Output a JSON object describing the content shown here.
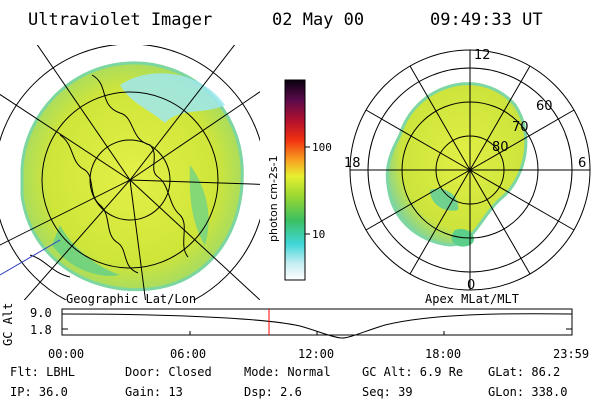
{
  "header": {
    "instrument": "Ultraviolet Imager",
    "date": "02 May 00",
    "time": "09:49:33 UT"
  },
  "colors": {
    "foreground": "#000000",
    "background": "#ffffff",
    "cursor": "#ff0000",
    "aurora_main": "#d8ef3a",
    "aurora_low": "#52c98a",
    "aurora_edge": "#8ee6ea"
  },
  "panels": {
    "geographic_label": "Geographic Lat/Lon",
    "apex_label": "Apex MLat/MLT"
  },
  "colorbar": {
    "unit_label": "photon cm-2s-1",
    "ticks": [
      "100",
      "10"
    ]
  },
  "polar_plot": {
    "mlt_labels": [
      "12",
      "18",
      "6",
      "0"
    ],
    "mlat_labels": [
      "60",
      "70",
      "80"
    ]
  },
  "timeline": {
    "axis_label": "GC Alt",
    "y_ticks": [
      "9.0",
      "1.8"
    ],
    "x_ticks": [
      "00:00",
      "06:00",
      "12:00",
      "18:00",
      "23:59"
    ]
  },
  "status": {
    "filter": "Flt: LBHL",
    "ip": "IP: 36.0",
    "door": "Door: Closed",
    "gain": "Gain: 13",
    "mode": "Mode: Normal",
    "dsp": "Dsp:    2.6",
    "gc_alt": "GC Alt: 6.9 Re",
    "seq": "Seq: 39",
    "glat": "GLat:  86.2",
    "glon": "GLon: 338.0"
  }
}
